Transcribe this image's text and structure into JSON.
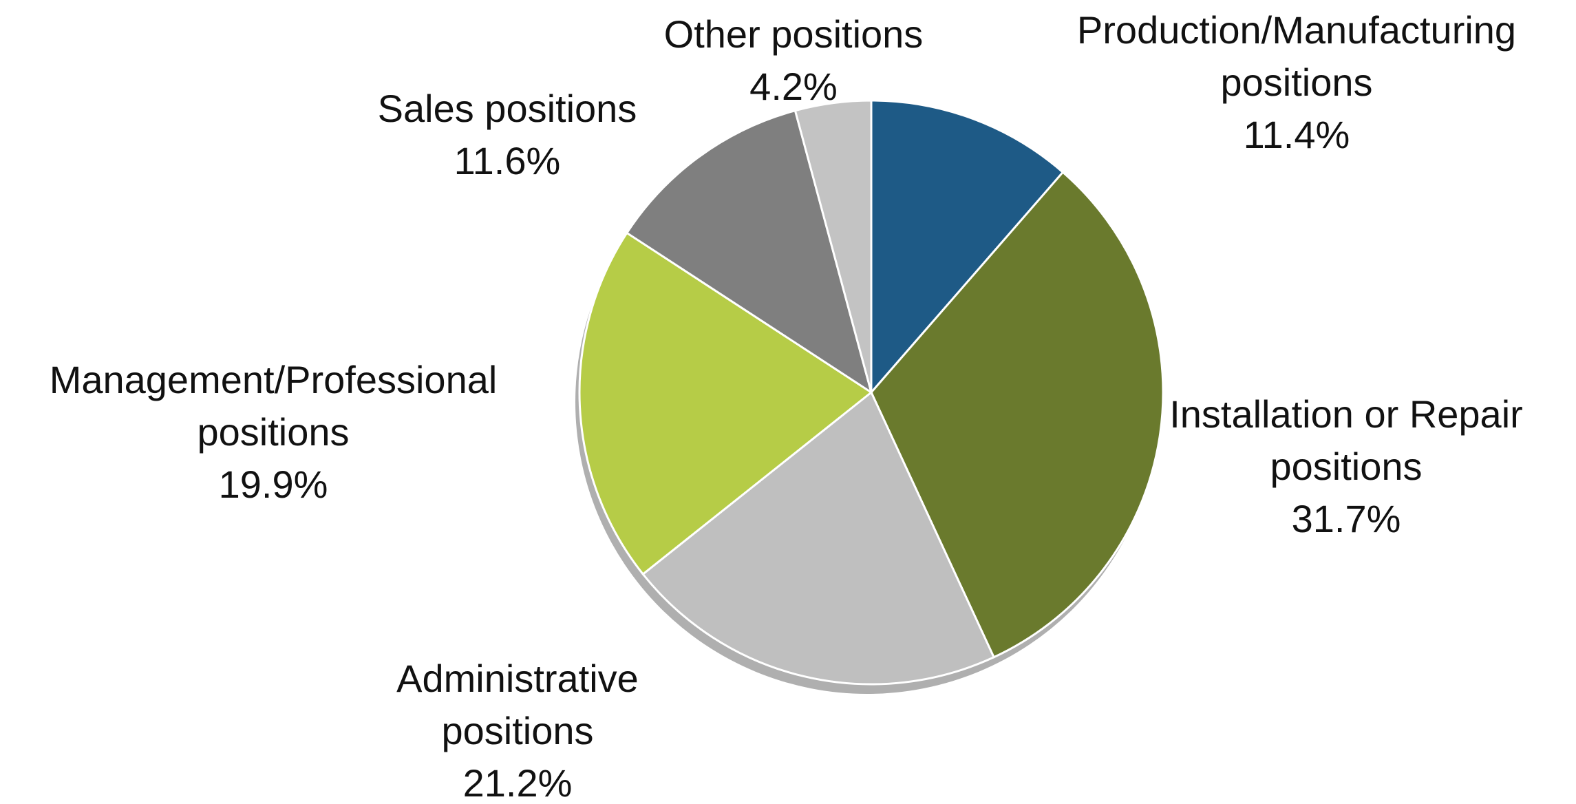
{
  "chart_data": {
    "type": "pie",
    "categories": [
      "Production/Manufacturing positions",
      "Installation or Repair positions",
      "Administrative positions",
      "Management/Professional positions",
      "Sales positions",
      "Other positions"
    ],
    "values": [
      11.4,
      31.7,
      21.2,
      19.9,
      11.6,
      4.2
    ],
    "value_labels": [
      "11.4%",
      "31.7%",
      "21.2%",
      "19.9%",
      "11.6%",
      "4.2%"
    ],
    "colors": [
      "#1e5a86",
      "#6a7a2d",
      "#bfbfbf",
      "#b6cc47",
      "#7f7f7f",
      "#c3c3c3"
    ]
  }
}
